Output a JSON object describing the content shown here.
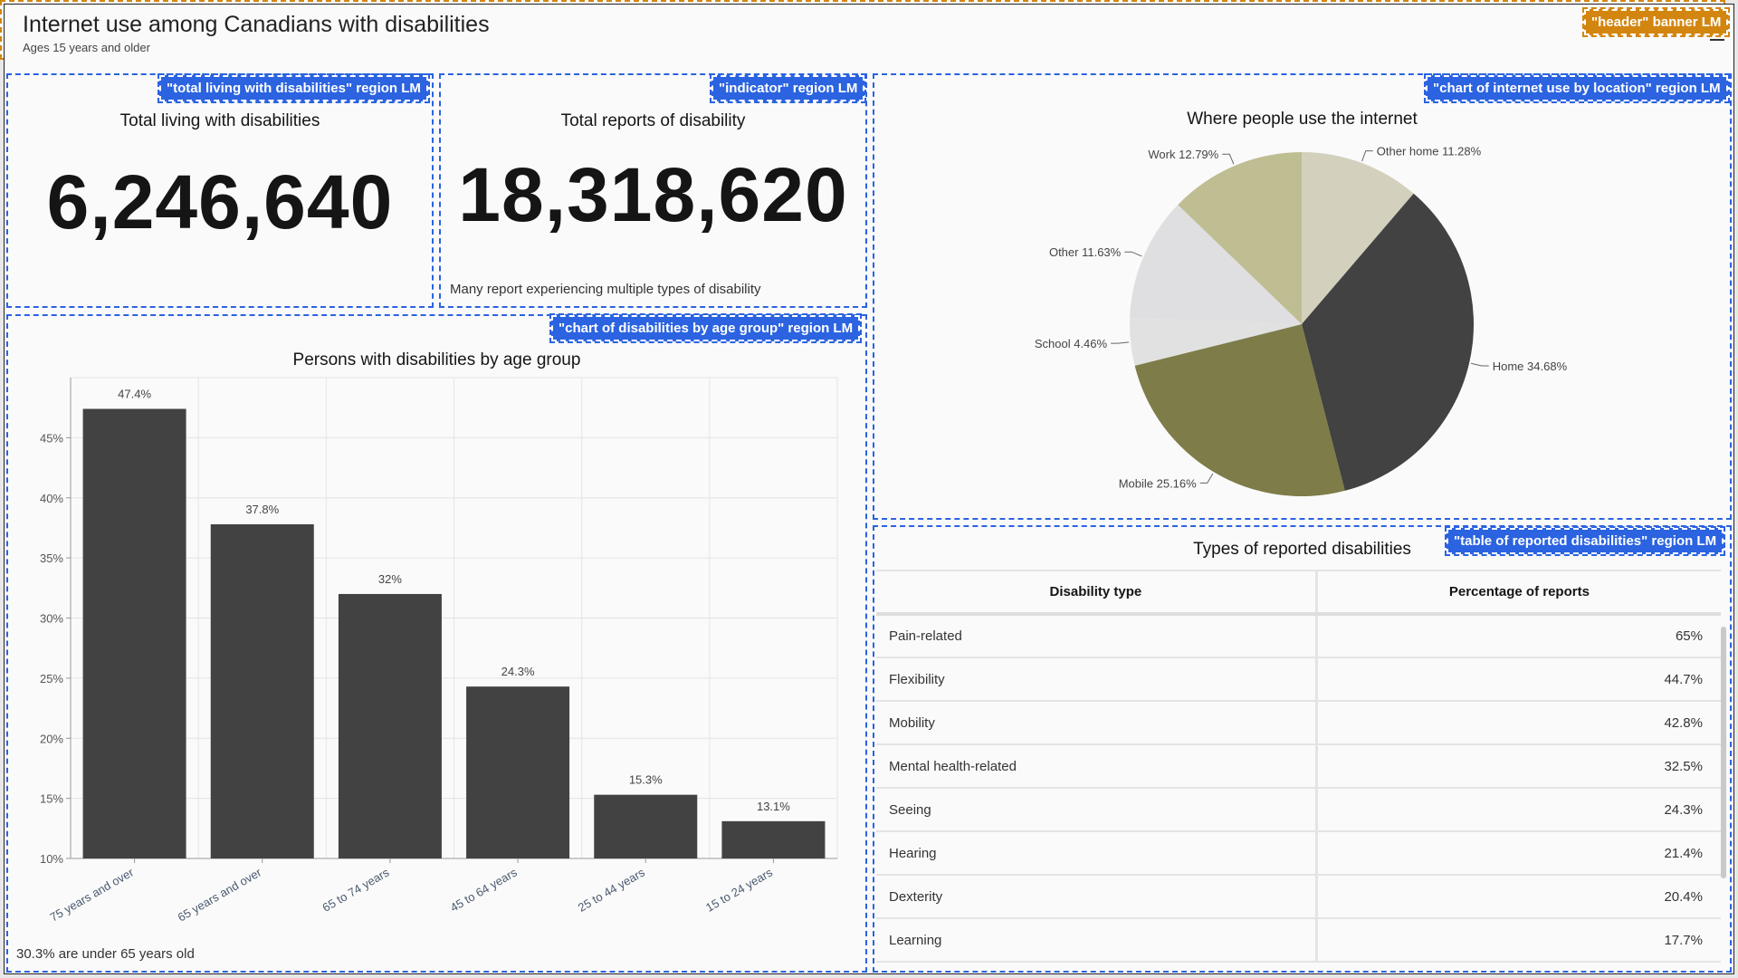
{
  "header": {
    "title": "Internet use among Canadians with disabilities",
    "subtitle": "Ages 15 years and older"
  },
  "overlays": {
    "header": "\"header\" banner LM",
    "total": "\"total living with disabilities\" region LM",
    "indicator": "\"indicator\" region LM",
    "age_chart": "\"chart of disabilities by age group\" region LM",
    "pie": "\"chart of internet use by location\" region LM",
    "table": "\"table of reported disabilities\" region LM"
  },
  "total": {
    "title": "Total living with disabilities",
    "value": "6,246,640"
  },
  "indicator": {
    "title": "Total reports of disability",
    "value": "18,318,620",
    "note": "Many report experiencing multiple types of disability"
  },
  "chart_data": [
    {
      "type": "bar",
      "title": "Persons with disabilities by age group",
      "categories": [
        "75 years and over",
        "65 years and over",
        "65 to 74 years",
        "45 to 64 years",
        "25 to 44 years",
        "15 to 24 years"
      ],
      "values": [
        47.4,
        37.8,
        32,
        24.3,
        15.3,
        13.1
      ],
      "data_labels": [
        "47.4%",
        "37.8%",
        "32%",
        "24.3%",
        "15.3%",
        "13.1%"
      ],
      "ylim": [
        10,
        50
      ],
      "yticks": [
        "10%",
        "15%",
        "20%",
        "25%",
        "30%",
        "35%",
        "40%",
        "45%"
      ],
      "ytick_values": [
        10,
        15,
        20,
        25,
        30,
        35,
        40,
        45
      ],
      "grid": true,
      "bar_color": "#424242",
      "footnote": "30.3% are under 65 years old"
    },
    {
      "type": "pie",
      "title": "Where people use the internet",
      "slices": [
        {
          "label": "Other home",
          "value": 11.28,
          "text": "11.28%",
          "color": "#d3d1bd"
        },
        {
          "label": "Home",
          "value": 34.68,
          "text": "34.68%",
          "color": "#424242"
        },
        {
          "label": "Mobile",
          "value": 25.16,
          "text": "25.16%",
          "color": "#7e7c48"
        },
        {
          "label": "School",
          "value": 4.46,
          "text": "4.46%",
          "color": "#e1e1e1"
        },
        {
          "label": "Other",
          "value": 11.63,
          "text": "11.63%",
          "color": "#dfdfe1"
        },
        {
          "label": "Work",
          "value": 12.79,
          "text": "12.79%",
          "color": "#bfbd92"
        }
      ]
    }
  ],
  "table": {
    "title": "Types of reported disabilities",
    "columns": [
      "Disability type",
      "Percentage of reports"
    ],
    "rows": [
      [
        "Pain-related",
        "65%"
      ],
      [
        "Flexibility",
        "44.7%"
      ],
      [
        "Mobility",
        "42.8%"
      ],
      [
        "Mental health-related",
        "32.5%"
      ],
      [
        "Seeing",
        "24.3%"
      ],
      [
        "Hearing",
        "21.4%"
      ],
      [
        "Dexterity",
        "20.4%"
      ],
      [
        "Learning",
        "17.7%"
      ]
    ]
  }
}
